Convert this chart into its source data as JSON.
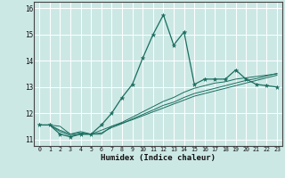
{
  "xlabel": "Humidex (Indice chaleur)",
  "bg_color": "#cce8e5",
  "line_color": "#1a6e60",
  "xlim": [
    -0.5,
    23.5
  ],
  "ylim": [
    10.75,
    16.25
  ],
  "yticks": [
    11,
    12,
    13,
    14,
    15,
    16
  ],
  "xticks": [
    0,
    1,
    2,
    3,
    4,
    5,
    6,
    7,
    8,
    9,
    10,
    11,
    12,
    13,
    14,
    15,
    16,
    17,
    18,
    19,
    20,
    21,
    22,
    23
  ],
  "series": [
    {
      "x": [
        0,
        1,
        2,
        3,
        4,
        5,
        6,
        7,
        8,
        9,
        10,
        11,
        12,
        13,
        14,
        15,
        16,
        17,
        18,
        19,
        20,
        21,
        22,
        23
      ],
      "y": [
        11.55,
        11.55,
        11.2,
        11.1,
        11.2,
        11.2,
        11.55,
        12.0,
        12.6,
        13.1,
        14.1,
        15.0,
        15.75,
        14.6,
        15.1,
        13.1,
        13.3,
        13.3,
        13.3,
        13.65,
        13.3,
        13.1,
        13.05,
        13.0
      ],
      "marker": true
    },
    {
      "x": [
        0,
        1,
        2,
        3,
        4,
        5,
        6,
        7,
        8,
        9,
        10,
        11,
        12,
        13,
        14,
        15,
        16,
        17,
        18,
        19,
        20,
        21,
        22,
        23
      ],
      "y": [
        11.55,
        11.55,
        11.3,
        11.15,
        11.2,
        11.2,
        11.35,
        11.5,
        11.65,
        11.85,
        12.05,
        12.25,
        12.45,
        12.6,
        12.8,
        12.95,
        13.05,
        13.15,
        13.2,
        13.3,
        13.35,
        13.4,
        13.45,
        13.5
      ],
      "marker": false
    },
    {
      "x": [
        0,
        1,
        2,
        3,
        4,
        5,
        6,
        7,
        8,
        9,
        10,
        11,
        12,
        13,
        14,
        15,
        16,
        17,
        18,
        19,
        20,
        21,
        22,
        23
      ],
      "y": [
        11.55,
        11.55,
        11.35,
        11.2,
        11.25,
        11.2,
        11.25,
        11.45,
        11.6,
        11.78,
        11.95,
        12.12,
        12.3,
        12.42,
        12.6,
        12.75,
        12.85,
        12.95,
        13.05,
        13.15,
        13.25,
        13.32,
        13.42,
        13.52
      ],
      "marker": false
    },
    {
      "x": [
        0,
        1,
        2,
        3,
        4,
        5,
        6,
        7,
        8,
        9,
        10,
        11,
        12,
        13,
        14,
        15,
        16,
        17,
        18,
        19,
        20,
        21,
        22,
        23
      ],
      "y": [
        11.55,
        11.55,
        11.5,
        11.2,
        11.3,
        11.2,
        11.2,
        11.5,
        11.62,
        11.75,
        11.9,
        12.05,
        12.2,
        12.35,
        12.5,
        12.65,
        12.75,
        12.85,
        12.95,
        13.05,
        13.15,
        13.25,
        13.35,
        13.45
      ],
      "marker": false
    }
  ]
}
